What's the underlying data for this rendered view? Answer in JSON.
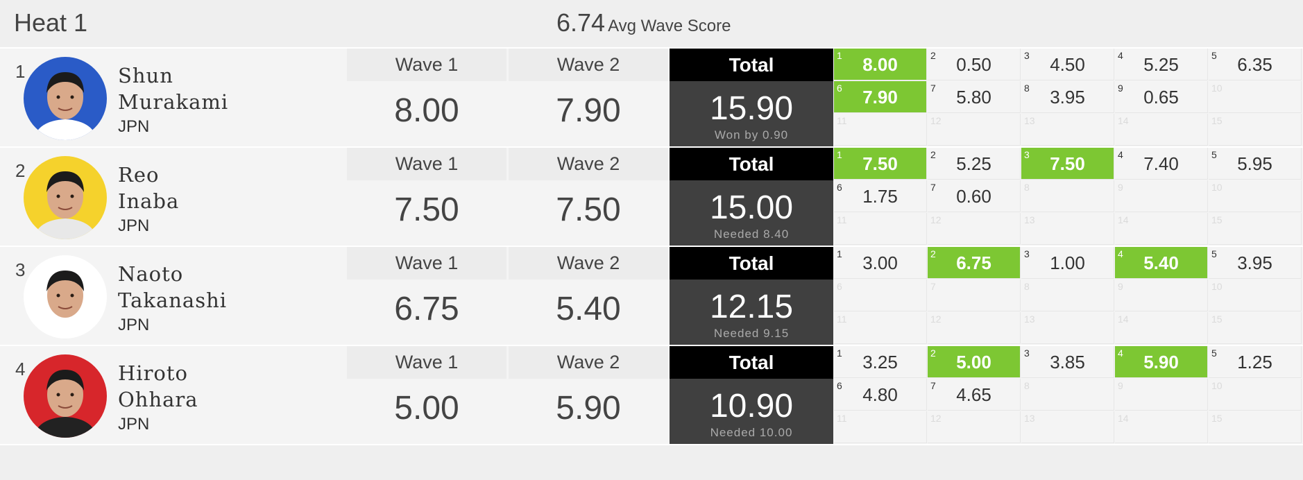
{
  "header": {
    "heat_title": "Heat 1",
    "avg_value": "6.74",
    "avg_label": "Avg Wave Score"
  },
  "labels": {
    "wave1": "Wave 1",
    "wave2": "Wave 2",
    "total": "Total"
  },
  "athletes": [
    {
      "place": "1",
      "first": "Shun",
      "last": "Murakami",
      "country": "JPN",
      "avatar_bg": "#2a5bc7",
      "wave1": "8.00",
      "wave2": "7.90",
      "total": "15.90",
      "note": "Won by 0.90",
      "waves": [
        {
          "n": "1",
          "s": "8.00",
          "hl": true
        },
        {
          "n": "2",
          "s": "0.50"
        },
        {
          "n": "3",
          "s": "4.50"
        },
        {
          "n": "4",
          "s": "5.25"
        },
        {
          "n": "5",
          "s": "6.35"
        },
        {
          "n": "6",
          "s": "7.90",
          "hl": true
        },
        {
          "n": "7",
          "s": "5.80"
        },
        {
          "n": "8",
          "s": "3.95"
        },
        {
          "n": "9",
          "s": "0.65"
        },
        {
          "n": "10",
          "s": ""
        },
        {
          "n": "11",
          "s": ""
        },
        {
          "n": "12",
          "s": ""
        },
        {
          "n": "13",
          "s": ""
        },
        {
          "n": "14",
          "s": ""
        },
        {
          "n": "15",
          "s": ""
        }
      ]
    },
    {
      "place": "2",
      "first": "Reo",
      "last": "Inaba",
      "country": "JPN",
      "avatar_bg": "#f5d22c",
      "wave1": "7.50",
      "wave2": "7.50",
      "total": "15.00",
      "note": "Needed 8.40",
      "waves": [
        {
          "n": "1",
          "s": "7.50",
          "hl": true
        },
        {
          "n": "2",
          "s": "5.25"
        },
        {
          "n": "3",
          "s": "7.50",
          "hl": true
        },
        {
          "n": "4",
          "s": "7.40"
        },
        {
          "n": "5",
          "s": "5.95"
        },
        {
          "n": "6",
          "s": "1.75"
        },
        {
          "n": "7",
          "s": "0.60"
        },
        {
          "n": "8",
          "s": ""
        },
        {
          "n": "9",
          "s": ""
        },
        {
          "n": "10",
          "s": ""
        },
        {
          "n": "11",
          "s": ""
        },
        {
          "n": "12",
          "s": ""
        },
        {
          "n": "13",
          "s": ""
        },
        {
          "n": "14",
          "s": ""
        },
        {
          "n": "15",
          "s": ""
        }
      ]
    },
    {
      "place": "3",
      "first": "Naoto",
      "last": "Takanashi",
      "country": "JPN",
      "avatar_bg": "#ffffff",
      "wave1": "6.75",
      "wave2": "5.40",
      "total": "12.15",
      "note": "Needed 9.15",
      "waves": [
        {
          "n": "1",
          "s": "3.00"
        },
        {
          "n": "2",
          "s": "6.75",
          "hl": true
        },
        {
          "n": "3",
          "s": "1.00"
        },
        {
          "n": "4",
          "s": "5.40",
          "hl": true
        },
        {
          "n": "5",
          "s": "3.95"
        },
        {
          "n": "6",
          "s": ""
        },
        {
          "n": "7",
          "s": ""
        },
        {
          "n": "8",
          "s": ""
        },
        {
          "n": "9",
          "s": ""
        },
        {
          "n": "10",
          "s": ""
        },
        {
          "n": "11",
          "s": ""
        },
        {
          "n": "12",
          "s": ""
        },
        {
          "n": "13",
          "s": ""
        },
        {
          "n": "14",
          "s": ""
        },
        {
          "n": "15",
          "s": ""
        }
      ]
    },
    {
      "place": "4",
      "first": "Hiroto",
      "last": "Ohhara",
      "country": "JPN",
      "avatar_bg": "#d7262b",
      "wave1": "5.00",
      "wave2": "5.90",
      "total": "10.90",
      "note": "Needed 10.00",
      "waves": [
        {
          "n": "1",
          "s": "3.25"
        },
        {
          "n": "2",
          "s": "5.00",
          "hl": true
        },
        {
          "n": "3",
          "s": "3.85"
        },
        {
          "n": "4",
          "s": "5.90",
          "hl": true
        },
        {
          "n": "5",
          "s": "1.25"
        },
        {
          "n": "6",
          "s": "4.80"
        },
        {
          "n": "7",
          "s": "4.65"
        },
        {
          "n": "8",
          "s": ""
        },
        {
          "n": "9",
          "s": ""
        },
        {
          "n": "10",
          "s": ""
        },
        {
          "n": "11",
          "s": ""
        },
        {
          "n": "12",
          "s": ""
        },
        {
          "n": "13",
          "s": ""
        },
        {
          "n": "14",
          "s": ""
        },
        {
          "n": "15",
          "s": ""
        }
      ]
    }
  ]
}
